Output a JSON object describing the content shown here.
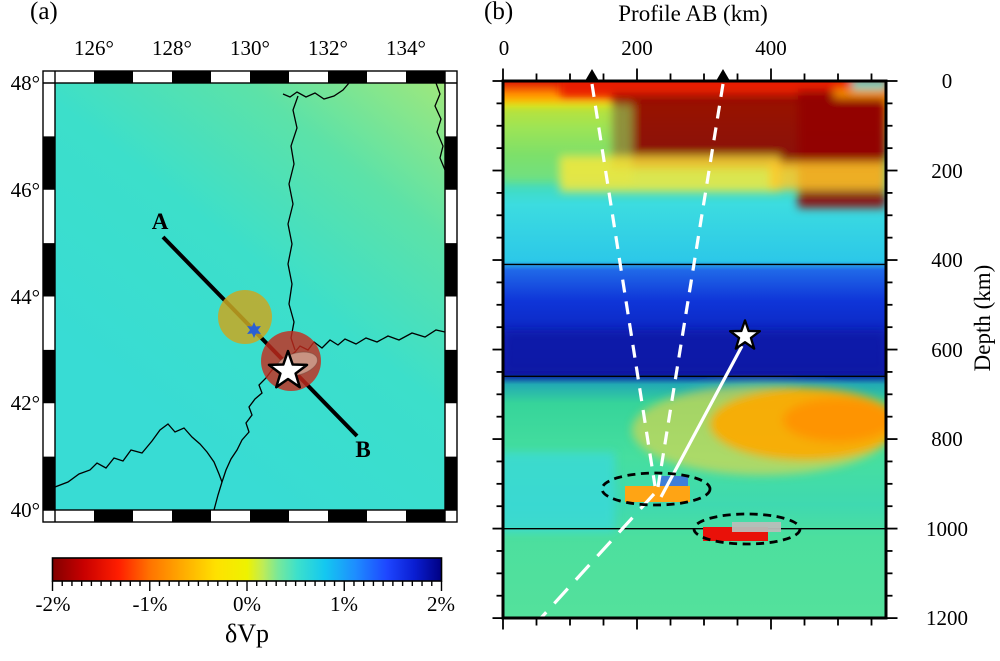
{
  "ui": {
    "panel_a": {
      "label": "(a)",
      "lon_ticks": [
        "126°",
        "128°",
        "130°",
        "132°",
        "134°"
      ],
      "lat_ticks": [
        "48°",
        "46°",
        "44°",
        "42°",
        "40°"
      ],
      "profile_a": "A",
      "profile_b": "B",
      "cbar_ticks": [
        "-2%",
        "-1%",
        "0%",
        "1%",
        "2%"
      ],
      "cbar_label": "δVp"
    },
    "panel_b": {
      "label": "(b)",
      "title": "Profile AB (km)",
      "x_ticks": [
        "0",
        "200",
        "400"
      ],
      "depth_ticks": [
        "0",
        "200",
        "400",
        "600",
        "800",
        "1000",
        "1200"
      ],
      "y_label": "Depth (km)"
    }
  },
  "chart_data": [
    {
      "panel": "a",
      "type": "heatmap",
      "title": "(a)",
      "content": "Map view of P-wave velocity perturbation with profile A-B",
      "lon_range_deg": [
        125,
        135
      ],
      "lon_ticks_deg": [
        126,
        128,
        130,
        132,
        134
      ],
      "lat_range_deg": [
        40,
        48
      ],
      "lat_ticks_deg": [
        48,
        46,
        44,
        42,
        40
      ],
      "background_dvp_percent": 0.2,
      "profile_line": {
        "A": {
          "lon": 127.8,
          "lat": 45.1
        },
        "B": {
          "lon": 132.7,
          "lat": 41.4
        }
      },
      "markers": [
        {
          "name": "yellow-circle",
          "lon": 129.9,
          "lat": 43.6,
          "radius_deg": 0.7,
          "color": "#c9a822"
        },
        {
          "name": "blue-station-marker",
          "lon": 130.1,
          "lat": 43.4,
          "color": "#2a5fd4"
        },
        {
          "name": "red-circle",
          "lon": 131.05,
          "lat": 42.8,
          "radius_deg": 0.77,
          "color": "#c7291b"
        },
        {
          "name": "gray-ellipse",
          "lon": 131.2,
          "lat": 42.73,
          "color": "#cea08e"
        },
        {
          "name": "epicenter-star",
          "lon": 131.0,
          "lat": 42.6,
          "color": "#ffffff"
        }
      ],
      "colorbar": {
        "label": "δVp",
        "range_percent": [
          -2,
          2
        ],
        "tick_percent": [
          -2,
          -1,
          0,
          1,
          2
        ],
        "minor_tick_percent": 0.1
      }
    },
    {
      "panel": "b",
      "type": "heatmap",
      "title": "Profile AB (km)",
      "x_range_km": [
        0,
        572
      ],
      "x_ticks_km": [
        0,
        200,
        400
      ],
      "x_minor_tick_km": 50,
      "depth_range_km": [
        0,
        1200
      ],
      "depth_ticks_km": [
        0,
        200,
        400,
        600,
        800,
        1000,
        1200
      ],
      "depth_minor_tick_km": 50,
      "ylabel": "Depth (km)",
      "discontinuity_lines_km": [
        410,
        660,
        1000
      ],
      "station_triangles_x_km": [
        133,
        328
      ],
      "earthquake_star": {
        "x_km": 361,
        "depth_km": 570
      },
      "scatter_patches": [
        {
          "name": "blue-patch",
          "x_km": [
            233,
            276
          ],
          "depth_km": [
            883,
            905
          ],
          "color": "#3f7fd9"
        },
        {
          "name": "orange-patch",
          "x_km": [
            182,
            279
          ],
          "depth_km": [
            905,
            941
          ],
          "color": "#ffa414"
        },
        {
          "name": "gray-patch",
          "x_km": [
            342,
            415
          ],
          "depth_km": [
            985,
            1008
          ],
          "color": "#b9bdb9"
        },
        {
          "name": "red-patch",
          "x_km": [
            299,
            396
          ],
          "depth_km": [
            997,
            1028
          ],
          "color": "#e91109"
        }
      ],
      "dashed_outlines": [
        {
          "center_x_km": 229,
          "center_depth_km": 911,
          "rx_km": 81,
          "ry_km": 36
        },
        {
          "center_x_km": 365,
          "center_depth_km": 1001,
          "rx_km": 79,
          "ry_km": 34
        }
      ],
      "rays": [
        {
          "style": "dashed",
          "from": {
            "x_km": 133,
            "depth_km": 0
          },
          "to": {
            "x_km": 227,
            "depth_km": 905
          }
        },
        {
          "style": "dashed",
          "from": {
            "x_km": 328,
            "depth_km": 0
          },
          "to": {
            "x_km": 232,
            "depth_km": 907
          }
        },
        {
          "style": "long-dash",
          "from": {
            "x_km": 226,
            "depth_km": 923
          },
          "to": {
            "x_km": 57,
            "depth_km": 1200
          }
        },
        {
          "style": "solid",
          "from": {
            "x_km": 361,
            "depth_km": 585
          },
          "to": {
            "x_km": 236,
            "depth_km": 930
          }
        }
      ],
      "background_bands": [
        {
          "depth_km": [
            0,
            190
          ],
          "dvp_percent": -1.5,
          "desc": "slow red band, darkest on right half"
        },
        {
          "depth_km": [
            200,
            400
          ],
          "dvp_percent": 0.4,
          "desc": "cyan mildly fast"
        },
        {
          "depth_km": [
            410,
            660
          ],
          "dvp_percent": 1.6,
          "desc": "strong fast blue layer (stagnant slab)"
        },
        {
          "depth_km": [
            660,
            840
          ],
          "dvp_percent": -0.8,
          "desc": "green with orange-yellow slow anomaly on right"
        },
        {
          "depth_km": [
            840,
            1200
          ],
          "dvp_percent": 0.1,
          "desc": "uniform green-teal"
        }
      ]
    }
  ]
}
